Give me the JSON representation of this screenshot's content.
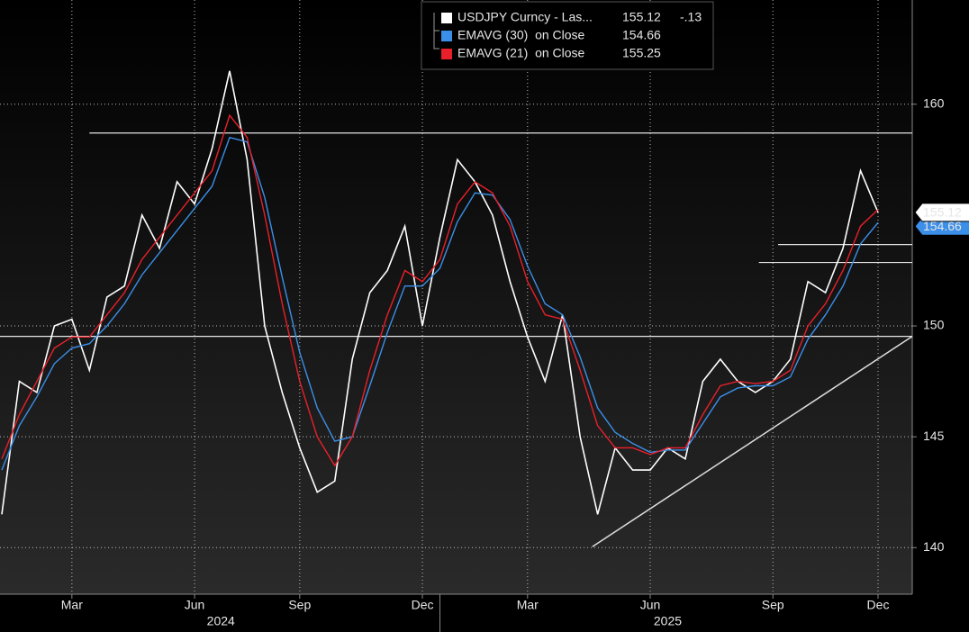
{
  "chart_data": {
    "type": "line",
    "categories": [
      null,
      null,
      null,
      null,
      "Mar",
      null,
      null,
      null,
      null,
      null,
      null,
      "Jun",
      null,
      null,
      null,
      null,
      null,
      "Sep",
      null,
      null,
      null,
      null,
      null,
      null,
      "Dec",
      null,
      null,
      null,
      null,
      null,
      "Mar",
      null,
      null,
      null,
      null,
      null,
      null,
      "Jun",
      null,
      null,
      null,
      null,
      null,
      null,
      "Sep",
      null,
      null,
      null,
      null,
      null,
      "Dec"
    ],
    "years": [
      {
        "label": "2024",
        "from": 0,
        "to": 25
      },
      {
        "label": "2025",
        "from": 25,
        "to": 51
      }
    ],
    "series": [
      {
        "name": "USDJPY Curncy - Las...",
        "color": "#ffffff",
        "change": {
          "value": -0.13,
          "label": "-.13"
        },
        "values": [
          141.5,
          147.5,
          147,
          150,
          150.3,
          148,
          151.3,
          151.8,
          155,
          153.5,
          156.5,
          155.5,
          158,
          161.5,
          157.5,
          150,
          147,
          144.5,
          142.5,
          143,
          148.5,
          151.5,
          152.5,
          154.5,
          150,
          154,
          157.5,
          156.5,
          155,
          152,
          149.5,
          147.5,
          150.5,
          145,
          141.5,
          144.5,
          143.5,
          143.5,
          144.5,
          144,
          147.5,
          148.5,
          147.5,
          147,
          147.5,
          148.5,
          152,
          151.5,
          153.5,
          157,
          155.12
        ]
      },
      {
        "name": "EMAVG (30)  on Close",
        "color": "#3b8fe8",
        "values": [
          143.5,
          145.5,
          146.8,
          148.3,
          149,
          149.2,
          150,
          151,
          152.3,
          153.3,
          154.3,
          155.3,
          156.3,
          158.5,
          158.3,
          155.8,
          152.2,
          148.8,
          146.3,
          144.8,
          145,
          147.3,
          149.7,
          151.8,
          151.8,
          152.6,
          154.7,
          156,
          155.9,
          154.8,
          152.7,
          151,
          150.5,
          148.6,
          146.3,
          145.2,
          144.7,
          144.3,
          144.4,
          144.4,
          145.6,
          146.8,
          147.2,
          147.3,
          147.3,
          147.7,
          149.4,
          150.5,
          151.8,
          153.7,
          154.66
        ]
      },
      {
        "name": "EMAVG (21)  on Close",
        "color": "#e8202a",
        "values": [
          144,
          146,
          147.5,
          149,
          149.5,
          149.5,
          150.5,
          151.5,
          153,
          154,
          155,
          156,
          157,
          159.5,
          158.5,
          155,
          151,
          147.5,
          145,
          143.7,
          145,
          148,
          150.5,
          152.5,
          152,
          153,
          155.5,
          156.5,
          156,
          154.5,
          152,
          150.5,
          150.3,
          148,
          145.5,
          144.5,
          144.5,
          144.2,
          144.5,
          144.5,
          146,
          147.3,
          147.5,
          147.4,
          147.5,
          148,
          150,
          151,
          152.5,
          154.5,
          155.25
        ]
      }
    ],
    "ylim": [
      137.9,
      164.7
    ],
    "yticks": [
      140,
      145,
      150,
      160
    ],
    "grid": true,
    "hlines": [
      {
        "y": 158.7,
        "from": 5
      },
      {
        "y": 149.53,
        "from": -0.2
      },
      {
        "y": 153.67,
        "from": 44.3
      },
      {
        "y": 152.86,
        "from": 43.2
      }
    ],
    "trendline": [
      [
        33.7,
        140.04
      ],
      [
        52,
        149.53
      ]
    ]
  }
}
